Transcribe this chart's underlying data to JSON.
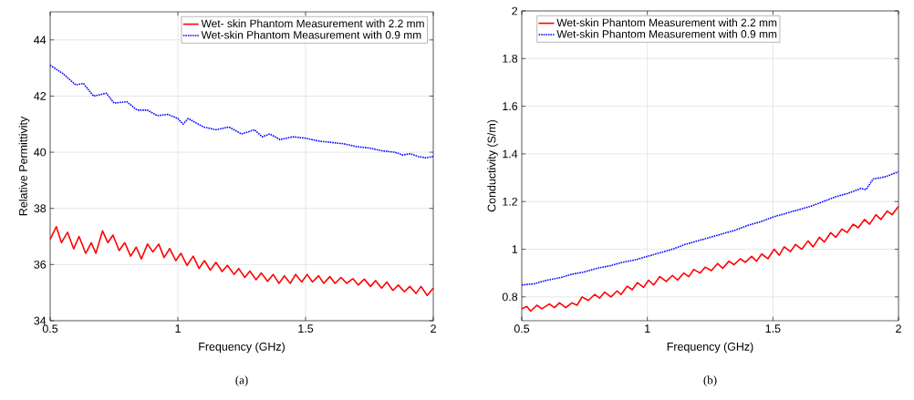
{
  "chart_data": [
    {
      "type": "line",
      "xlabel": "Frequency (GHz)",
      "ylabel": "Relative Permittivity",
      "xlim": [
        0.5,
        2
      ],
      "ylim": [
        34,
        45
      ],
      "xticks": [
        0.5,
        1,
        1.5,
        2
      ],
      "yticks": [
        34,
        36,
        38,
        40,
        42,
        44
      ],
      "grid": true,
      "legend": "top right",
      "annotations": [
        "(a)"
      ],
      "series": [
        {
          "name": "Wet- skin Phantom Measurement with 2.2 mm",
          "color": "#ff0000",
          "line_style": "solid",
          "x": [
            0.5,
            0.524,
            0.544,
            0.568,
            0.592,
            0.613,
            0.639,
            0.661,
            0.679,
            0.705,
            0.726,
            0.746,
            0.77,
            0.792,
            0.815,
            0.837,
            0.857,
            0.881,
            0.902,
            0.925,
            0.946,
            0.968,
            0.992,
            1.012,
            1.036,
            1.06,
            1.083,
            1.104,
            1.127,
            1.149,
            1.173,
            1.194,
            1.22,
            1.238,
            1.262,
            1.282,
            1.306,
            1.327,
            1.351,
            1.373,
            1.396,
            1.417,
            1.44,
            1.461,
            1.485,
            1.506,
            1.527,
            1.551,
            1.571,
            1.595,
            1.615,
            1.639,
            1.661,
            1.685,
            1.706,
            1.73,
            1.754,
            1.774,
            1.798,
            1.818,
            1.842,
            1.863,
            1.887,
            1.908,
            1.932,
            1.952,
            1.976,
            2.0
          ],
          "values": [
            36.9,
            37.35,
            36.78,
            37.15,
            36.56,
            37.0,
            36.4,
            36.78,
            36.4,
            37.2,
            36.78,
            37.05,
            36.5,
            36.78,
            36.3,
            36.62,
            36.2,
            36.73,
            36.45,
            36.73,
            36.25,
            36.57,
            36.14,
            36.4,
            35.97,
            36.3,
            35.86,
            36.14,
            35.8,
            36.08,
            35.75,
            35.97,
            35.65,
            35.86,
            35.54,
            35.77,
            35.46,
            35.7,
            35.4,
            35.65,
            35.33,
            35.6,
            35.33,
            35.65,
            35.38,
            35.65,
            35.38,
            35.6,
            35.33,
            35.57,
            35.33,
            35.54,
            35.33,
            35.5,
            35.27,
            35.48,
            35.22,
            35.43,
            35.16,
            35.38,
            35.08,
            35.27,
            35.03,
            35.22,
            34.97,
            35.22,
            34.9,
            35.16
          ]
        },
        {
          "name": "Wet-skin Phantom Measurement with 0.9 mm",
          "color": "#0000ff",
          "line_style": "dotted",
          "x": [
            0.5,
            0.55,
            0.6,
            0.63,
            0.67,
            0.72,
            0.75,
            0.8,
            0.84,
            0.88,
            0.92,
            0.96,
            1.0,
            1.02,
            1.04,
            1.1,
            1.15,
            1.2,
            1.25,
            1.3,
            1.33,
            1.36,
            1.4,
            1.45,
            1.5,
            1.55,
            1.6,
            1.65,
            1.7,
            1.75,
            1.8,
            1.85,
            1.88,
            1.91,
            1.94,
            1.97,
            2.0
          ],
          "values": [
            43.1,
            42.8,
            42.4,
            42.45,
            42.0,
            42.1,
            41.75,
            41.8,
            41.5,
            41.5,
            41.3,
            41.35,
            41.2,
            41.0,
            41.2,
            40.9,
            40.8,
            40.9,
            40.65,
            40.8,
            40.55,
            40.65,
            40.45,
            40.55,
            40.5,
            40.4,
            40.35,
            40.3,
            40.2,
            40.15,
            40.05,
            40.0,
            39.9,
            39.95,
            39.85,
            39.8,
            39.85
          ]
        }
      ]
    },
    {
      "type": "line",
      "xlabel": "Frequency (GHz)",
      "ylabel": "Conductivity (S/m)",
      "xlim": [
        0.5,
        2
      ],
      "ylim": [
        0.7,
        2
      ],
      "xticks": [
        0.5,
        1,
        1.5,
        2
      ],
      "yticks": [
        0.8,
        1,
        1.2,
        1.4,
        1.6,
        1.8,
        2
      ],
      "grid": true,
      "legend": "top left",
      "annotations": [
        "(b)"
      ],
      "series": [
        {
          "name": "Wet-skin Phantom Measurement with 2.2 mm",
          "color": "#ff0000",
          "line_style": "solid",
          "x": [
            0.5,
            0.52,
            0.535,
            0.56,
            0.58,
            0.61,
            0.63,
            0.65,
            0.675,
            0.7,
            0.72,
            0.74,
            0.765,
            0.79,
            0.81,
            0.83,
            0.855,
            0.88,
            0.895,
            0.92,
            0.94,
            0.96,
            0.985,
            1.005,
            1.025,
            1.05,
            1.075,
            1.1,
            1.12,
            1.145,
            1.165,
            1.185,
            1.21,
            1.23,
            1.255,
            1.28,
            1.3,
            1.325,
            1.345,
            1.37,
            1.39,
            1.415,
            1.435,
            1.455,
            1.48,
            1.505,
            1.525,
            1.545,
            1.57,
            1.59,
            1.615,
            1.64,
            1.66,
            1.685,
            1.705,
            1.73,
            1.75,
            1.775,
            1.795,
            1.82,
            1.84,
            1.865,
            1.885,
            1.91,
            1.93,
            1.955,
            1.975,
            2.0
          ],
          "values": [
            0.75,
            0.76,
            0.74,
            0.765,
            0.75,
            0.77,
            0.755,
            0.775,
            0.755,
            0.775,
            0.765,
            0.8,
            0.785,
            0.81,
            0.795,
            0.82,
            0.8,
            0.825,
            0.81,
            0.845,
            0.83,
            0.86,
            0.84,
            0.87,
            0.85,
            0.885,
            0.865,
            0.89,
            0.87,
            0.9,
            0.885,
            0.915,
            0.9,
            0.925,
            0.91,
            0.94,
            0.92,
            0.95,
            0.935,
            0.96,
            0.945,
            0.97,
            0.95,
            0.98,
            0.96,
            1.0,
            0.975,
            1.01,
            0.99,
            1.02,
            1.0,
            1.035,
            1.01,
            1.05,
            1.03,
            1.07,
            1.05,
            1.085,
            1.07,
            1.105,
            1.09,
            1.125,
            1.105,
            1.145,
            1.125,
            1.16,
            1.145,
            1.18
          ]
        },
        {
          "name": "Wet-skin Phantom Measurement with 0.9 mm",
          "color": "#0000ff",
          "line_style": "dotted",
          "x": [
            0.5,
            0.55,
            0.6,
            0.65,
            0.7,
            0.75,
            0.8,
            0.85,
            0.9,
            0.95,
            1.0,
            1.05,
            1.1,
            1.15,
            1.2,
            1.25,
            1.3,
            1.35,
            1.4,
            1.45,
            1.5,
            1.55,
            1.6,
            1.65,
            1.7,
            1.75,
            1.8,
            1.85,
            1.87,
            1.9,
            1.93,
            1.95,
            2.0
          ],
          "values": [
            0.85,
            0.855,
            0.87,
            0.88,
            0.895,
            0.905,
            0.92,
            0.93,
            0.945,
            0.955,
            0.97,
            0.985,
            1.0,
            1.02,
            1.035,
            1.05,
            1.065,
            1.08,
            1.1,
            1.115,
            1.135,
            1.15,
            1.165,
            1.18,
            1.2,
            1.22,
            1.235,
            1.255,
            1.25,
            1.295,
            1.3,
            1.305,
            1.325
          ]
        }
      ]
    }
  ]
}
